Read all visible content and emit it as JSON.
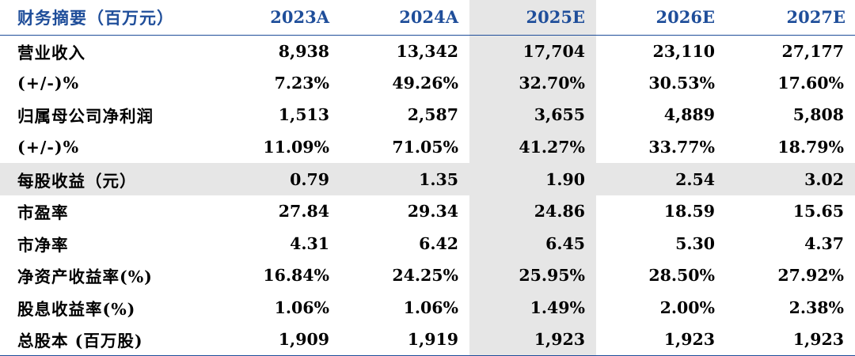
{
  "table": {
    "header": {
      "label": "财务摘要（百万元）",
      "columns": [
        "2023A",
        "2024A",
        "2025E",
        "2026E",
        "2027E"
      ]
    },
    "rows": [
      {
        "label": "营业收入",
        "values": [
          "8,938",
          "13,342",
          "17,704",
          "23,110",
          "27,177"
        ]
      },
      {
        "label": "(+/-)%",
        "values": [
          "7.23%",
          "49.26%",
          "32.70%",
          "30.53%",
          "17.60%"
        ]
      },
      {
        "label": "归属母公司净利润",
        "values": [
          "1,513",
          "2,587",
          "3,655",
          "4,889",
          "5,808"
        ]
      },
      {
        "label": "(+/-)%",
        "values": [
          "11.09%",
          "71.05%",
          "41.27%",
          "33.77%",
          "18.79%"
        ]
      },
      {
        "label": "每股收益（元）",
        "values": [
          "0.79",
          "1.35",
          "1.90",
          "2.54",
          "3.02"
        ]
      },
      {
        "label": "市盈率",
        "values": [
          "27.84",
          "29.34",
          "24.86",
          "18.59",
          "15.65"
        ]
      },
      {
        "label": "市净率",
        "values": [
          "4.31",
          "6.42",
          "6.45",
          "5.30",
          "4.37"
        ]
      },
      {
        "label": "净资产收益率(%)",
        "values": [
          "16.84%",
          "24.25%",
          "25.95%",
          "28.50%",
          "27.92%"
        ]
      },
      {
        "label": "股息收益率(%)",
        "values": [
          "1.06%",
          "1.06%",
          "1.49%",
          "2.00%",
          "2.38%"
        ]
      },
      {
        "label": "总股本 (百万股)",
        "values": [
          "1,909",
          "1,919",
          "1,923",
          "1,923",
          "1,923"
        ]
      }
    ]
  },
  "colors": {
    "header_text": "#1f4e9a",
    "rule": "#1f4e9a",
    "highlight_fill": "#e6e6e6"
  }
}
